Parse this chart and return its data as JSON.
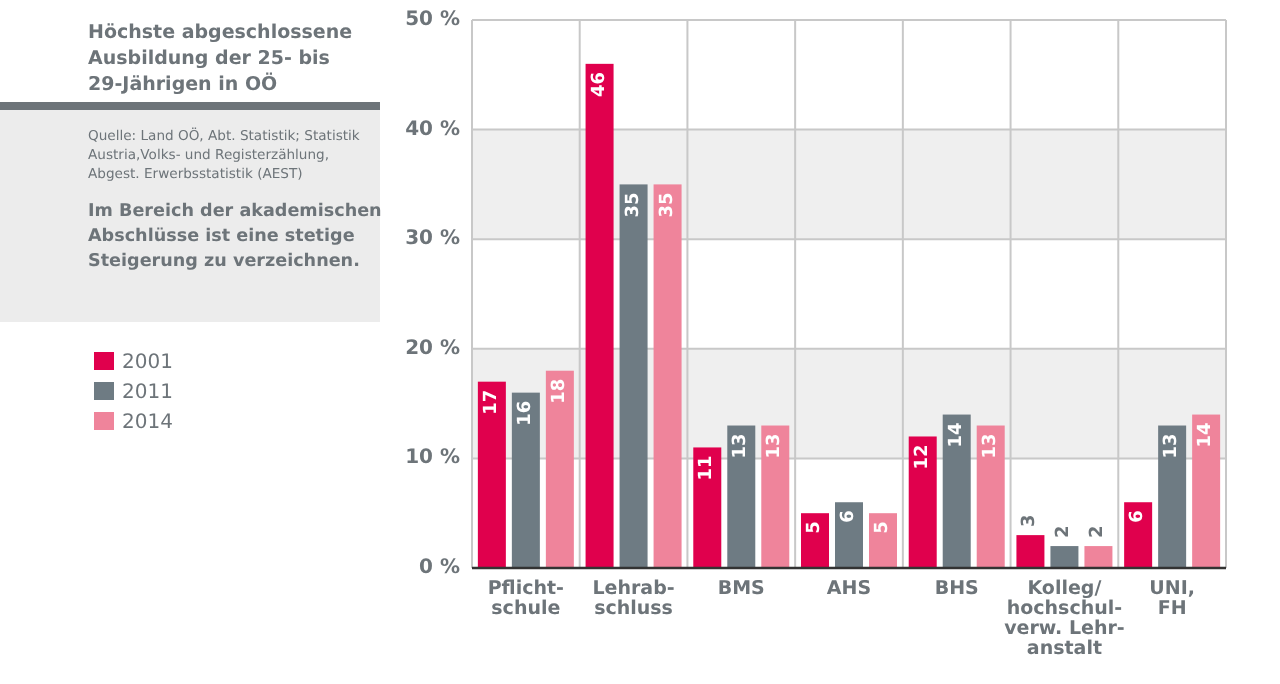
{
  "chart_data": {
    "type": "bar",
    "title": "Höchste abgeschlossene Ausbildung der 25- bis 29-Jährigen in OÖ",
    "subtitle": "Im Bereich der akademischen Abschlüsse ist eine stetige Steigerung zu verzeichnen.",
    "annotations": [
      "Quelle: Land OÖ, Abt. Statistik; Statistik Austria,Volks- und Registerzählung, Abgest. Erwerbsstatistik (AEST)"
    ],
    "categories": [
      "Pflicht-\nschule",
      "Lehrab-\nschluss",
      "BMS",
      "AHS",
      "BHS",
      "Kolleg/\nhochschul-\nverw. Lehr-\nanstalt",
      "UNI,\nFH"
    ],
    "series": [
      {
        "name": "2001",
        "color": "#e0004d",
        "values": [
          17,
          46,
          11,
          5,
          12,
          3,
          6
        ]
      },
      {
        "name": "2011",
        "color": "#6e7b83",
        "values": [
          16,
          35,
          13,
          6,
          14,
          2,
          13
        ]
      },
      {
        "name": "2014",
        "color": "#ef849b",
        "values": [
          18,
          35,
          13,
          5,
          13,
          2,
          14
        ]
      }
    ],
    "ylim": [
      0,
      50
    ],
    "yticks": [
      {
        "value": 0,
        "label": "0 %"
      },
      {
        "value": 10,
        "label": "10 %"
      },
      {
        "value": 20,
        "label": "20 %"
      },
      {
        "value": 30,
        "label": "30 %"
      },
      {
        "value": 40,
        "label": "40 %"
      },
      {
        "value": 50,
        "label": "50 %"
      }
    ],
    "bands": [
      {
        "axis": "y",
        "from": 10,
        "to": 20,
        "color": "#efefef"
      },
      {
        "axis": "y",
        "from": 30,
        "to": 40,
        "color": "#efefef"
      }
    ],
    "grid": true,
    "legend": "left",
    "data_labels": true
  }
}
